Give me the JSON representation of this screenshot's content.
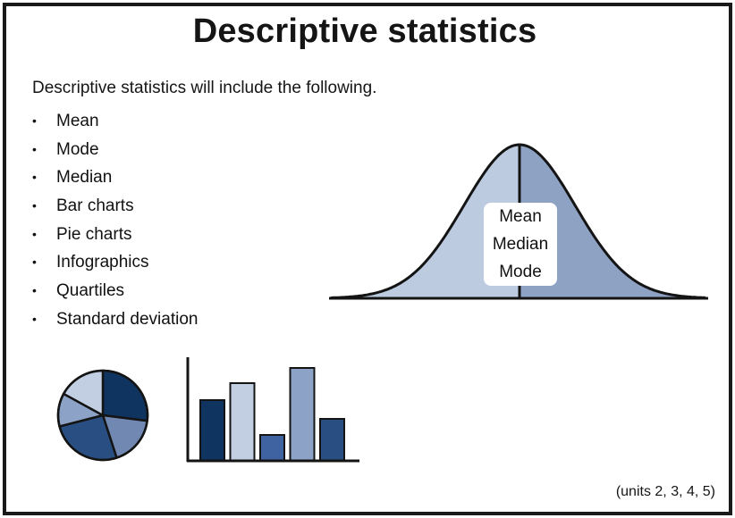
{
  "slide": {
    "title": "Descriptive statistics",
    "intro": "Descriptive statistics will include the following.",
    "bullets": [
      "Mean",
      "Mode",
      "Median",
      "Bar charts",
      "Pie charts",
      "Infographics",
      "Quartiles",
      "Standard deviation"
    ],
    "bullet_glyph": "•",
    "footnote": "(units 2, 3, 4, 5)"
  },
  "normal_curve": {
    "labels": [
      "Mean",
      "Median",
      "Mode"
    ],
    "left_fill": "#bccbdf",
    "right_fill": "#8ea3c4"
  },
  "chart_data": [
    {
      "type": "pie",
      "slices": [
        {
          "value": 27,
          "color": "#0f3460"
        },
        {
          "value": 18,
          "color": "#7189b2"
        },
        {
          "value": 26,
          "color": "#294f82"
        },
        {
          "value": 12,
          "color": "#8ca2c6"
        },
        {
          "value": 17,
          "color": "#c2cfe2"
        }
      ]
    },
    {
      "type": "bar",
      "values": [
        68,
        87,
        29,
        104,
        47
      ],
      "colors": [
        "#0f3460",
        "#c2cfe2",
        "#3f63a0",
        "#8ca2c6",
        "#294f82"
      ]
    }
  ]
}
